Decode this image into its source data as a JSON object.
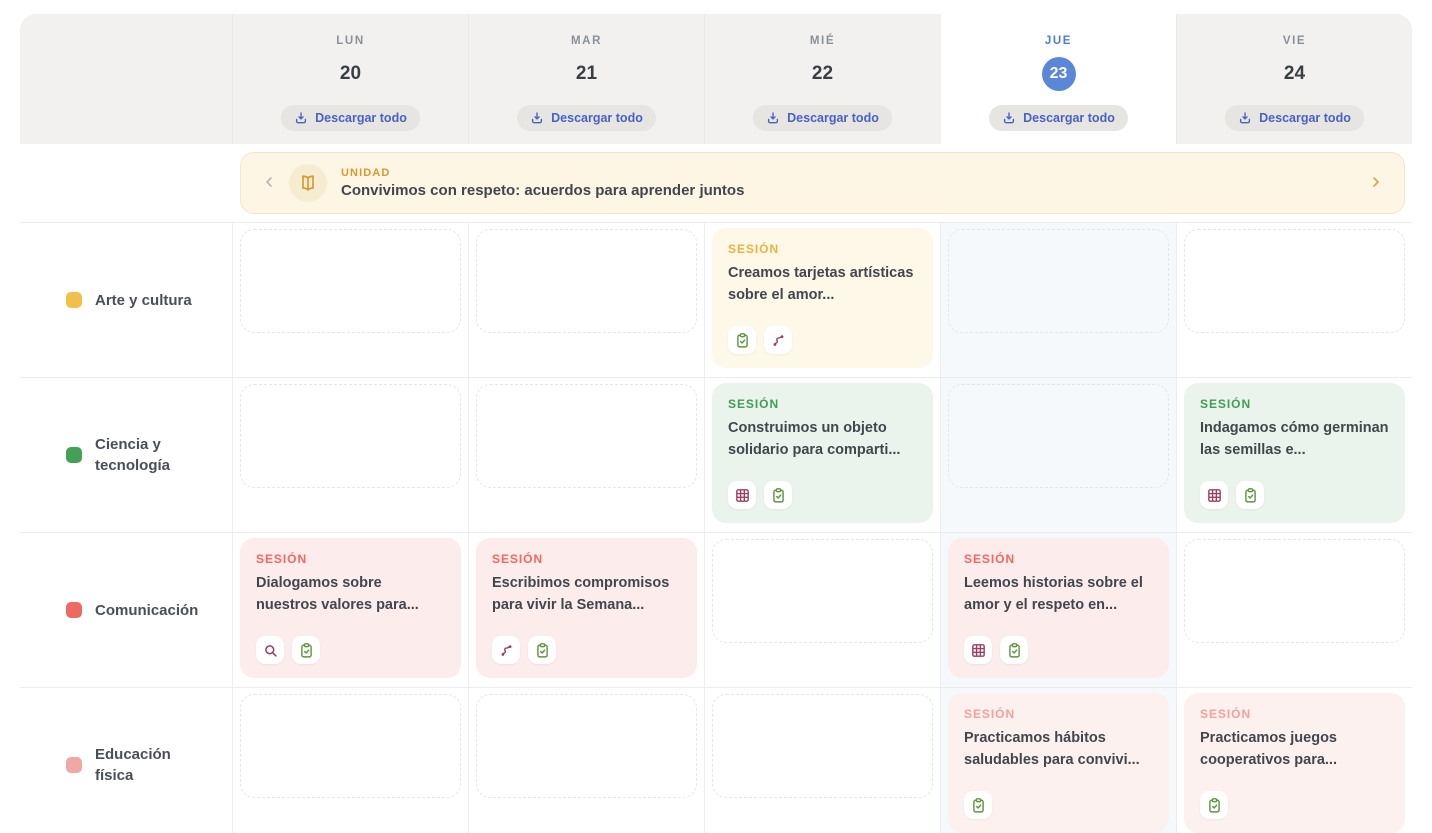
{
  "palette": {
    "accent_blue": "#5b87d9",
    "link_blue": "#4862c5",
    "header_bg": "#f2f1ef",
    "selected_column_bg": "#f5f9fc",
    "banner_bg": "#fdf6e4",
    "banner_accent": "#d49a2e",
    "icon_green": "#5f9440",
    "icon_maroon": "#9c3f63"
  },
  "header": {
    "days": [
      {
        "label": "LUN",
        "number": "20",
        "selected": false,
        "download_label": "Descargar todo"
      },
      {
        "label": "MAR",
        "number": "21",
        "selected": false,
        "download_label": "Descargar todo"
      },
      {
        "label": "MIÉ",
        "number": "22",
        "selected": false,
        "download_label": "Descargar todo"
      },
      {
        "label": "JUE",
        "number": "23",
        "selected": true,
        "download_label": "Descargar todo"
      },
      {
        "label": "VIE",
        "number": "24",
        "selected": false,
        "download_label": "Descargar todo"
      }
    ],
    "selected_day_index": 3
  },
  "banner": {
    "badge": "UNIDAD",
    "title": "Convivimos con respeto: acuerdos para aprender juntos",
    "icon": "book-icon",
    "prev_icon": "chevron-left-icon",
    "next_icon": "chevron-right-icon"
  },
  "rows": [
    {
      "subject": "Arte y cultura",
      "dot_color": "#f0c04a",
      "label_color": "#efb13d",
      "card_bg": "#fdf8e8",
      "session_label": "SESIÓN",
      "cells": [
        {
          "type": "empty"
        },
        {
          "type": "empty"
        },
        {
          "type": "session",
          "title": "Creamos tarjetas artísticas sobre el amor...",
          "icons": [
            "clipboard-check-icon",
            "route-icon"
          ]
        },
        {
          "type": "empty"
        },
        {
          "type": "empty"
        }
      ]
    },
    {
      "subject": "Ciencia y tecnología",
      "dot_color": "#43a055",
      "label_color": "#3f9e52",
      "card_bg": "#ebf4ec",
      "session_label": "SESIÓN",
      "cells": [
        {
          "type": "empty"
        },
        {
          "type": "empty"
        },
        {
          "type": "session",
          "title": "Construimos un objeto solidario para comparti...",
          "icons": [
            "grid-icon",
            "clipboard-check-icon"
          ]
        },
        {
          "type": "empty"
        },
        {
          "type": "session",
          "title": "Indagamos cómo germinan las semillas e...",
          "icons": [
            "grid-icon",
            "clipboard-check-icon"
          ]
        }
      ]
    },
    {
      "subject": "Comunicación",
      "dot_color": "#ed6a62",
      "label_color": "#f26760",
      "card_bg": "#fcedec",
      "session_label": "SESIÓN",
      "cells": [
        {
          "type": "session",
          "title": "Dialogamos sobre nuestros valores para...",
          "icons": [
            "search-icon",
            "clipboard-check-icon"
          ]
        },
        {
          "type": "session",
          "title": "Escribimos compromisos para vivir la Semana...",
          "icons": [
            "route-icon",
            "clipboard-check-icon"
          ]
        },
        {
          "type": "empty"
        },
        {
          "type": "session",
          "title": "Leemos historias sobre el amor y el respeto en...",
          "icons": [
            "grid-icon",
            "clipboard-check-icon"
          ]
        },
        {
          "type": "empty"
        }
      ]
    },
    {
      "subject": "Educación física",
      "dot_color": "#f2a7a7",
      "label_color": "#f5a09b",
      "card_bg": "#fdf1ef",
      "session_label": "SESIÓN",
      "cells": [
        {
          "type": "empty"
        },
        {
          "type": "empty"
        },
        {
          "type": "empty"
        },
        {
          "type": "session",
          "title": "Practicamos hábitos saludables para convivi...",
          "icons": [
            "clipboard-check-icon"
          ]
        },
        {
          "type": "session",
          "title": "Practicamos juegos cooperativos para...",
          "icons": [
            "clipboard-check-icon"
          ]
        }
      ]
    }
  ]
}
